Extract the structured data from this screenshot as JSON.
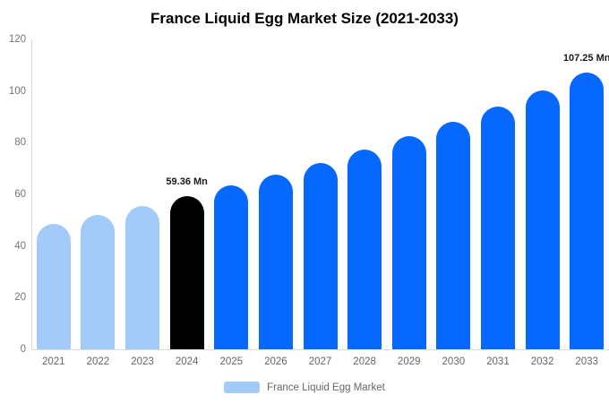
{
  "chart_data": {
    "type": "bar",
    "title": "France Liquid Egg Market Size (2021-2033)",
    "categories": [
      "2021",
      "2022",
      "2023",
      "2024",
      "2025",
      "2026",
      "2027",
      "2028",
      "2029",
      "2030",
      "2031",
      "2032",
      "2033"
    ],
    "values": [
      48.7,
      52.0,
      55.6,
      59.36,
      63.4,
      67.7,
      72.3,
      77.2,
      82.5,
      88.1,
      94.1,
      100.4,
      107.25
    ],
    "data_labels": [
      "",
      "",
      "",
      "59.36 Mn",
      "",
      "",
      "",
      "",
      "",
      "",
      "",
      "",
      "107.25 Mn"
    ],
    "bar_colors": [
      "#A2CBFA",
      "#A2CBFA",
      "#A2CBFA",
      "#000000",
      "#0768FD",
      "#0768FD",
      "#0768FD",
      "#0768FD",
      "#0768FD",
      "#0768FD",
      "#0768FD",
      "#0768FD",
      "#0768FD"
    ],
    "unit": "Mn",
    "xlabel": "",
    "ylabel": "",
    "ylim": [
      0,
      120
    ],
    "yticks": [
      0,
      20,
      40,
      60,
      80,
      100,
      120
    ],
    "grid": false,
    "legend": {
      "label": "France Liquid Egg Market",
      "swatch_color": "#A2CBFA",
      "position": "bottom"
    },
    "colors": {
      "historical_bar": "#A2CBFA",
      "base_year_bar": "#000000",
      "forecast_bar": "#0768FD",
      "axis_line": "#d9d9d9",
      "tick_text": "#757575",
      "title_text": "#000000"
    }
  }
}
